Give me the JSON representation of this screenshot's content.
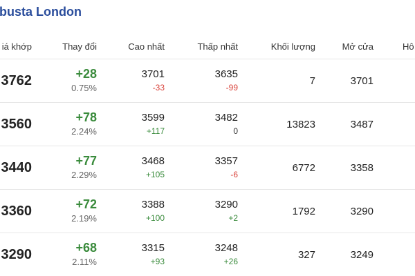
{
  "header": {
    "title": "busta London"
  },
  "table": {
    "columns": [
      "iá khớp",
      "Thay đổi",
      "Cao nhất",
      "Thấp nhất",
      "Khối lượng",
      "Mở cửa",
      "Hô"
    ],
    "rows": [
      {
        "price": "3762",
        "change": "+28",
        "change_pct": "0.75%",
        "high": "3701",
        "high_change": "-33",
        "low": "3635",
        "low_change": "-99",
        "volume": "7",
        "open": "3701"
      },
      {
        "price": "3560",
        "change": "+78",
        "change_pct": "2.24%",
        "high": "3599",
        "high_change": "+117",
        "low": "3482",
        "low_change": "0",
        "volume": "13823",
        "open": "3487"
      },
      {
        "price": "3440",
        "change": "+77",
        "change_pct": "2.29%",
        "high": "3468",
        "high_change": "+105",
        "low": "3357",
        "low_change": "-6",
        "volume": "6772",
        "open": "3358"
      },
      {
        "price": "3360",
        "change": "+72",
        "change_pct": "2.19%",
        "high": "3388",
        "high_change": "+100",
        "low": "3290",
        "low_change": "+2",
        "volume": "1792",
        "open": "3290"
      },
      {
        "price": "3290",
        "change": "+68",
        "change_pct": "2.11%",
        "high": "3315",
        "high_change": "+93",
        "low": "3248",
        "low_change": "+26",
        "volume": "327",
        "open": "3249"
      }
    ]
  }
}
